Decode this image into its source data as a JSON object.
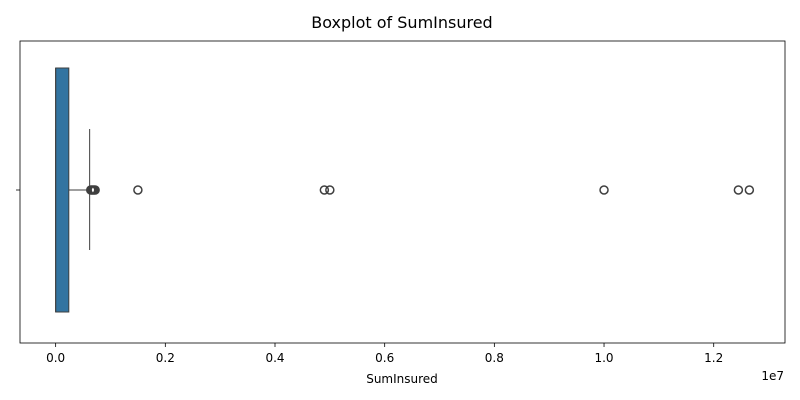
{
  "chart_data": {
    "type": "boxplot",
    "title": "Boxplot of SumInsured",
    "xlabel": "SumInsured",
    "ylabel": "",
    "x_offset_label": "1e7",
    "x_scale": 10000000,
    "xlim": [
      -650000,
      13300000
    ],
    "xticks": [
      0,
      2000000,
      4000000,
      6000000,
      8000000,
      10000000,
      12000000
    ],
    "xtick_labels": [
      "0.0",
      "0.2",
      "0.4",
      "0.6",
      "0.8",
      "1.0",
      "1.2"
    ],
    "grid": false,
    "box": {
      "min": 0,
      "q1": 0,
      "median": 0,
      "q3": 240000,
      "whisker_low": 0,
      "whisker_high": 620000,
      "color": "#3274a1"
    },
    "outliers": [
      640000,
      660000,
      680000,
      700000,
      720000,
      1500000,
      4900000,
      5000000,
      10000000,
      12450000,
      12650000
    ]
  }
}
